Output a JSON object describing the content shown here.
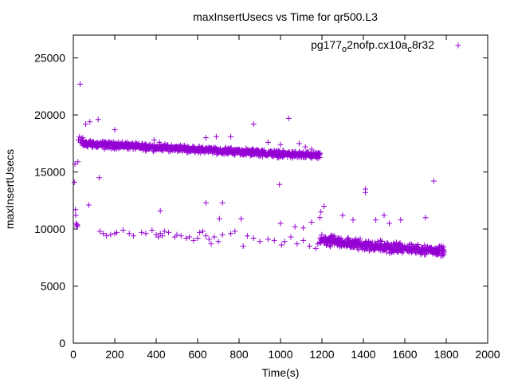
{
  "chart_data": {
    "type": "scatter",
    "title": "maxInsertUsecs vs Time for qr500.L3",
    "xlabel": "Time(s)",
    "ylabel": "maxInsertUsecs",
    "xlim": [
      0,
      2000
    ],
    "ylim": [
      0,
      27000
    ],
    "x_ticks": [
      "0",
      "200",
      "400",
      "600",
      "800",
      "1000",
      "1200",
      "1400",
      "1600",
      "1800",
      "2000"
    ],
    "y_ticks": [
      "0",
      "5000",
      "10000",
      "15000",
      "20000",
      "25000"
    ],
    "grid": false,
    "legend_position": "top-right",
    "series": [
      {
        "name": "pg177_o2nofp.cx10a_c8r32",
        "color": "#9400d3",
        "points": [
          [
            5,
            14100
          ],
          [
            8,
            15700
          ],
          [
            10,
            11700
          ],
          [
            12,
            11200
          ],
          [
            14,
            10500
          ],
          [
            16,
            10200
          ],
          [
            18,
            10400
          ],
          [
            20,
            10300
          ],
          [
            22,
            15900
          ],
          [
            25,
            17800
          ],
          [
            30,
            18100
          ],
          [
            34,
            17600
          ],
          [
            38,
            17900
          ],
          [
            42,
            17700
          ],
          [
            46,
            18000
          ],
          [
            50,
            17500
          ],
          [
            55,
            17400
          ],
          [
            60,
            17600
          ],
          [
            65,
            17300
          ],
          [
            33,
            22700
          ],
          [
            60,
            19200
          ],
          [
            80,
            19400
          ],
          [
            95,
            17500
          ],
          [
            120,
            19600
          ],
          [
            150,
            17000
          ],
          [
            200,
            18700
          ],
          [
            260,
            17600
          ],
          [
            300,
            17500
          ],
          [
            390,
            17800
          ],
          [
            415,
            17600
          ],
          [
            640,
            18000
          ],
          [
            690,
            18100
          ],
          [
            760,
            18100
          ],
          [
            870,
            19200
          ],
          [
            940,
            17600
          ],
          [
            1000,
            17400
          ],
          [
            1040,
            19700
          ],
          [
            1090,
            17500
          ],
          [
            1120,
            17200
          ],
          [
            1150,
            17000
          ],
          [
            1180,
            16200
          ],
          [
            75,
            12100
          ],
          [
            125,
            14500
          ],
          [
            995,
            13900
          ],
          [
            1195,
            11500
          ],
          [
            1210,
            12000
          ],
          [
            128,
            9800
          ],
          [
            145,
            9600
          ],
          [
            160,
            9400
          ],
          [
            180,
            9500
          ],
          [
            210,
            9700
          ],
          [
            240,
            9900
          ],
          [
            270,
            9600
          ],
          [
            290,
            9400
          ],
          [
            330,
            9700
          ],
          [
            350,
            9600
          ],
          [
            380,
            9900
          ],
          [
            400,
            9500
          ],
          [
            410,
            9300
          ],
          [
            420,
            9600
          ],
          [
            430,
            9400
          ],
          [
            440,
            9800
          ],
          [
            460,
            9700
          ],
          [
            490,
            9300
          ],
          [
            500,
            9500
          ],
          [
            520,
            9400
          ],
          [
            545,
            9200
          ],
          [
            560,
            9300
          ],
          [
            580,
            9000
          ],
          [
            600,
            9200
          ],
          [
            610,
            9700
          ],
          [
            625,
            9800
          ],
          [
            640,
            9400
          ],
          [
            655,
            9100
          ],
          [
            665,
            8700
          ],
          [
            680,
            9300
          ],
          [
            700,
            8900
          ],
          [
            720,
            9500
          ],
          [
            760,
            9600
          ],
          [
            780,
            9800
          ],
          [
            820,
            8500
          ],
          [
            840,
            9400
          ],
          [
            870,
            9200
          ],
          [
            900,
            8900
          ],
          [
            940,
            9100
          ],
          [
            970,
            9000
          ],
          [
            1005,
            8600
          ],
          [
            1020,
            8900
          ],
          [
            1050,
            9300
          ],
          [
            1080,
            8700
          ],
          [
            1110,
            9000
          ],
          [
            1140,
            8500
          ],
          [
            1170,
            8300
          ],
          [
            1180,
            8700
          ],
          [
            200,
            9600
          ],
          [
            420,
            11600
          ],
          [
            640,
            12300
          ],
          [
            720,
            12300
          ],
          [
            705,
            10900
          ],
          [
            810,
            10900
          ],
          [
            1000,
            10500
          ],
          [
            1070,
            10200
          ],
          [
            1110,
            10100
          ],
          [
            1150,
            10600
          ],
          [
            1350,
            10800
          ],
          [
            1410,
            13500
          ],
          [
            1460,
            10800
          ],
          [
            1525,
            10500
          ],
          [
            1700,
            11000
          ],
          [
            1740,
            14200
          ],
          [
            1300,
            11200
          ],
          [
            1190,
            11000
          ],
          [
            1500,
            11200
          ],
          [
            1580,
            10800
          ],
          [
            1410,
            13200
          ]
        ],
        "dense_bands": [
          {
            "x_range": [
              40,
              1190
            ],
            "y_start": 17500,
            "y_end": 16400,
            "spread": 700
          },
          {
            "x_range": [
              1190,
              1580
            ],
            "y_start": 9000,
            "y_end": 8300,
            "spread": 1200
          },
          {
            "x_range": [
              1580,
              1790
            ],
            "y_start": 8300,
            "y_end": 8100,
            "spread": 1000
          }
        ]
      }
    ]
  }
}
